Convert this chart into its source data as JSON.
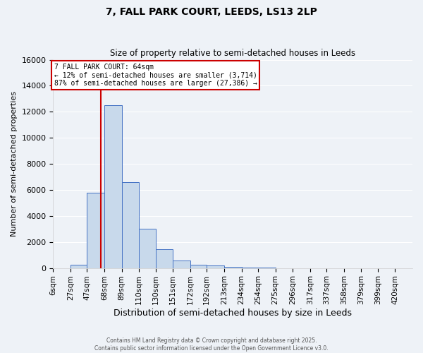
{
  "title": "7, FALL PARK COURT, LEEDS, LS13 2LP",
  "subtitle": "Size of property relative to semi-detached houses in Leeds",
  "xlabel": "Distribution of semi-detached houses by size in Leeds",
  "ylabel": "Number of semi-detached properties",
  "bin_labels": [
    "6sqm",
    "27sqm",
    "47sqm",
    "68sqm",
    "89sqm",
    "110sqm",
    "130sqm",
    "151sqm",
    "172sqm",
    "192sqm",
    "213sqm",
    "234sqm",
    "254sqm",
    "275sqm",
    "296sqm",
    "317sqm",
    "337sqm",
    "358sqm",
    "379sqm",
    "399sqm",
    "420sqm"
  ],
  "bin_edges": [
    6,
    27,
    47,
    68,
    89,
    110,
    130,
    151,
    172,
    192,
    213,
    234,
    254,
    275,
    296,
    317,
    337,
    358,
    379,
    399,
    420
  ],
  "bar_values": [
    0,
    250,
    5800,
    12500,
    6600,
    3000,
    1450,
    600,
    250,
    200,
    100,
    50,
    50,
    0,
    0,
    0,
    0,
    0,
    0,
    0
  ],
  "bar_color": "#c8d9eb",
  "bar_edge_color": "#4472c4",
  "property_size": 64,
  "property_label": "7 FALL PARK COURT: 64sqm",
  "pct_smaller": 12,
  "n_smaller": 3714,
  "pct_larger": 87,
  "n_larger": 27386,
  "vline_color": "#cc0000",
  "annotation_box_edge": "#cc0000",
  "ylim": [
    0,
    16000
  ],
  "yticks": [
    0,
    2000,
    4000,
    6000,
    8000,
    10000,
    12000,
    14000,
    16000
  ],
  "footer_line1": "Contains HM Land Registry data © Crown copyright and database right 2025.",
  "footer_line2": "Contains public sector information licensed under the Open Government Licence v3.0.",
  "bg_color": "#eef2f7",
  "grid_color": "#ffffff"
}
